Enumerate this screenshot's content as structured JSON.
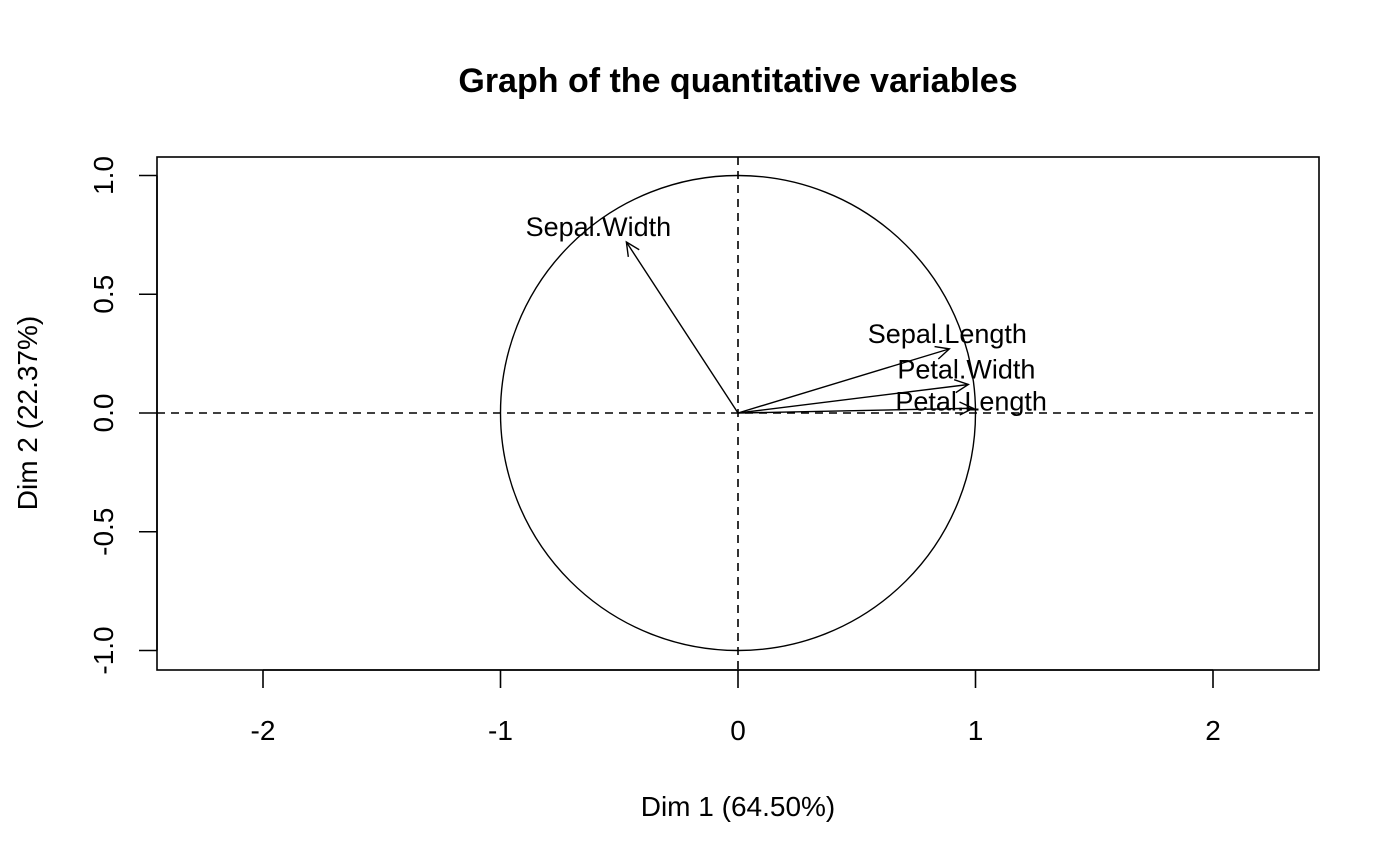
{
  "chart_data": {
    "type": "scatter",
    "subtype": "pca-correlation-circle",
    "title": "Graph of the quantitative variables",
    "xlabel": "Dim 1 (64.50%)",
    "ylabel": "Dim 2 (22.37%)",
    "xlim": [
      -2.45,
      2.45
    ],
    "ylim": [
      -1.08,
      1.08
    ],
    "x_ticks": [
      -2,
      -1,
      0,
      1,
      2
    ],
    "x_tick_labels": [
      "-2",
      "-1",
      "0",
      "1",
      "2"
    ],
    "y_ticks": [
      -1.0,
      -0.5,
      0.0,
      0.5,
      1.0
    ],
    "y_tick_labels": [
      "-1.0",
      "-0.5",
      "0.0",
      "0.5",
      "1.0"
    ],
    "grid": false,
    "unit_circle": true,
    "reference_lines": "dashed at x=0 and y=0",
    "variables": [
      {
        "name": "Sepal.Length",
        "x": 0.89,
        "y": 0.27
      },
      {
        "name": "Sepal.Width",
        "x": -0.47,
        "y": 0.72
      },
      {
        "name": "Petal.Length",
        "x": 0.99,
        "y": 0.02
      },
      {
        "name": "Petal.Width",
        "x": 0.97,
        "y": 0.12
      }
    ],
    "colors": {
      "arrows": "#000000",
      "circle": "#000000",
      "background": "#ffffff"
    }
  }
}
